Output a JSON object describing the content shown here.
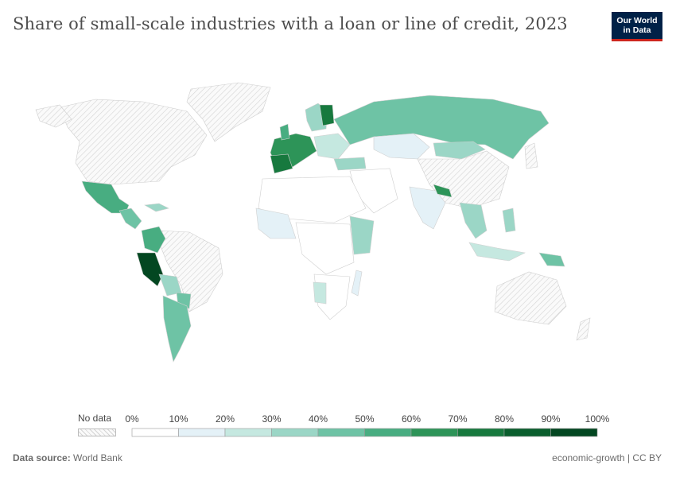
{
  "title": "Share of small-scale industries with a loan or line of credit, 2023",
  "logo": {
    "line1": "Our World",
    "line2": "in Data"
  },
  "legend": {
    "nodata_label": "No data",
    "ticks": [
      "0%",
      "10%",
      "20%",
      "30%",
      "40%",
      "50%",
      "60%",
      "70%",
      "80%",
      "90%",
      "100%"
    ],
    "bins": [
      {
        "range": [
          0,
          10
        ],
        "color": "#ffffff"
      },
      {
        "range": [
          10,
          20
        ],
        "color": "#e4f1f7"
      },
      {
        "range": [
          20,
          30
        ],
        "color": "#c5e8e0"
      },
      {
        "range": [
          30,
          40
        ],
        "color": "#9bd6c6"
      },
      {
        "range": [
          40,
          50
        ],
        "color": "#6ec3a5"
      },
      {
        "range": [
          50,
          60
        ],
        "color": "#48ad81"
      },
      {
        "range": [
          60,
          70
        ],
        "color": "#2d9458"
      },
      {
        "range": [
          70,
          80
        ],
        "color": "#17793e"
      },
      {
        "range": [
          80,
          90
        ],
        "color": "#0a5e2d"
      },
      {
        "range": [
          90,
          100
        ],
        "color": "#034721"
      }
    ],
    "nodata_color": "#e6e6e6"
  },
  "footer": {
    "source_label": "Data source:",
    "source_value": "World Bank",
    "right": "economic-growth | CC BY"
  }
}
